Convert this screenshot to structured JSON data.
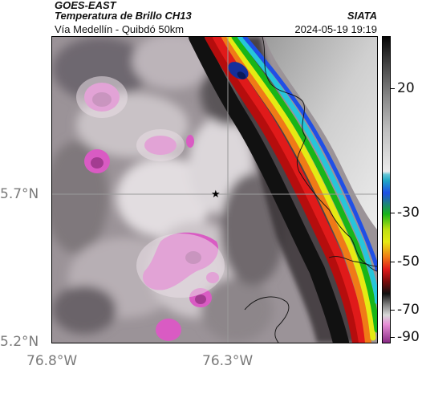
{
  "header": {
    "agency": "GOES-EAST",
    "product": "Temperatura de Brillo CH13",
    "organization": "SIATA",
    "region": "Vía Medellín - Quibdó 50km",
    "timestamp": "2024-05-19 19:19"
  },
  "axes": {
    "lat_labels": [
      "5.7°N",
      "5.2°N"
    ],
    "lon_labels": [
      "76.8°W",
      "76.3°W"
    ]
  },
  "colorbar": {
    "ticks": [
      "20",
      "-30",
      "-50",
      "-70",
      "-90"
    ]
  },
  "markers": [
    {
      "name": "star-marker",
      "symbol": "★"
    }
  ],
  "colors": {
    "warm_gray": "#8a8287",
    "cold_pink": "#d95bc3",
    "front_red": "#e01a1a",
    "front_yellow": "#e5ea13",
    "front_green": "#18b518",
    "front_blue": "#1f4fe6",
    "front_cyan": "#26c6da",
    "clear_land": "#d4d4d4"
  }
}
